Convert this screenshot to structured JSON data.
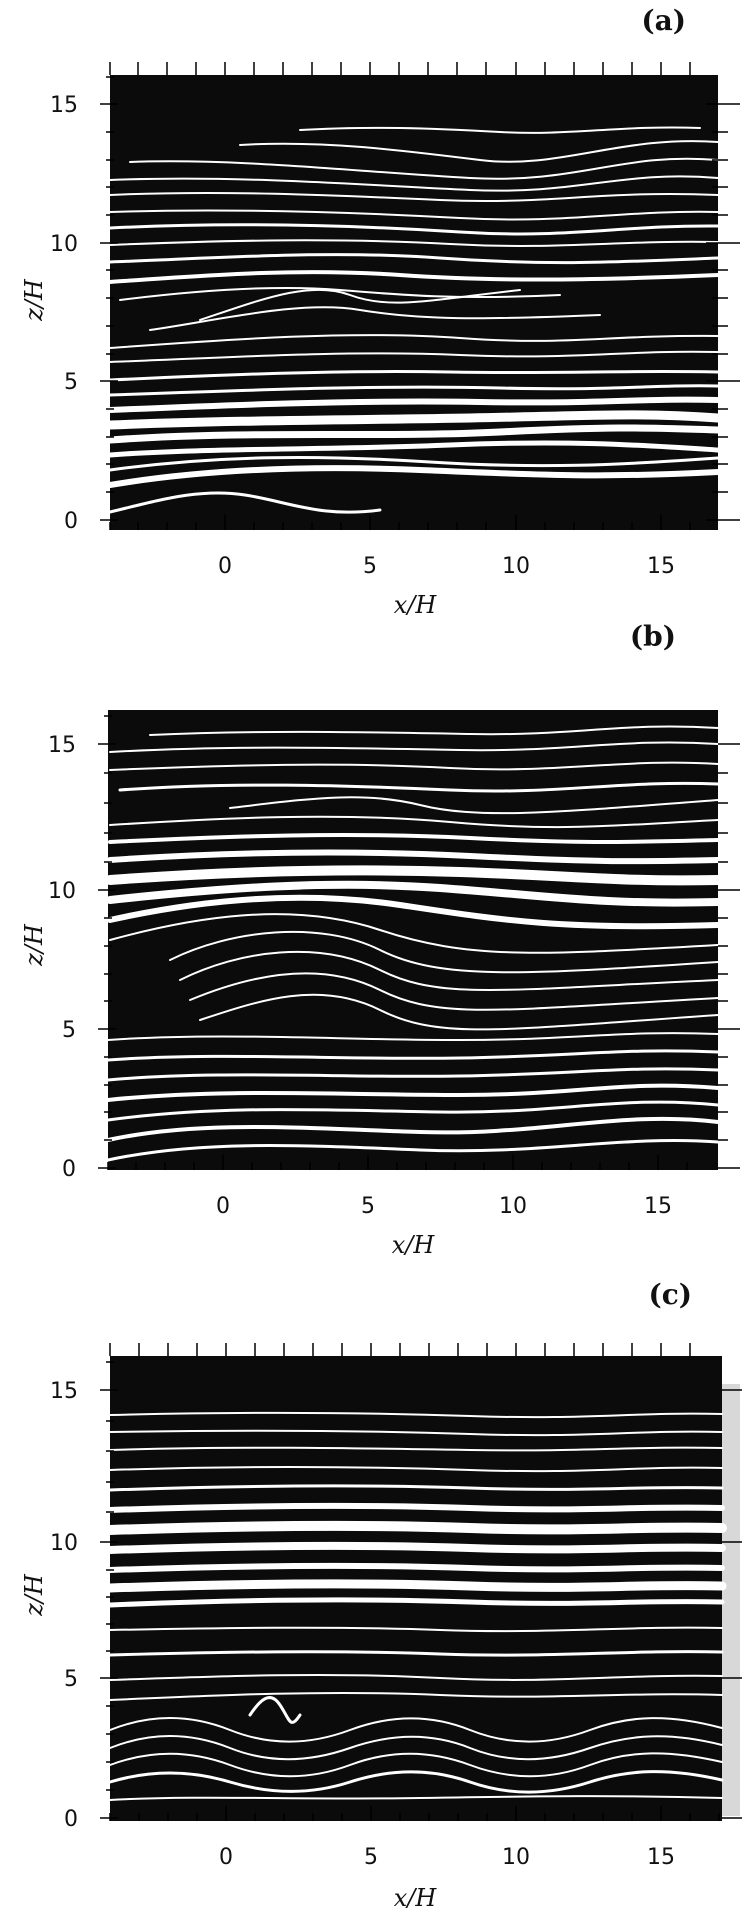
{
  "panels": [
    {
      "label": "(a)",
      "xlabel": "x/H",
      "ylabel": "z/H",
      "xticks": [
        "0",
        "5",
        "10",
        "15"
      ],
      "yticks": [
        "0",
        "5",
        "10",
        "15"
      ]
    },
    {
      "label": "(b)",
      "xlabel": "x/H",
      "ylabel": "z/H",
      "xticks": [
        "0",
        "5",
        "10",
        "15"
      ],
      "yticks": [
        "0",
        "5",
        "10",
        "15"
      ]
    },
    {
      "label": "(c)",
      "xlabel": "x/H",
      "ylabel": "z/H",
      "xticks": [
        "0",
        "5",
        "10",
        "15"
      ],
      "yticks": [
        "0",
        "5",
        "10",
        "15"
      ]
    }
  ],
  "axis_range": {
    "x": [
      -4.3,
      16.5
    ],
    "z": [
      -0.3,
      16.2
    ]
  },
  "colors": {
    "background": "#0b0b0b",
    "streak": "#ffffff"
  }
}
